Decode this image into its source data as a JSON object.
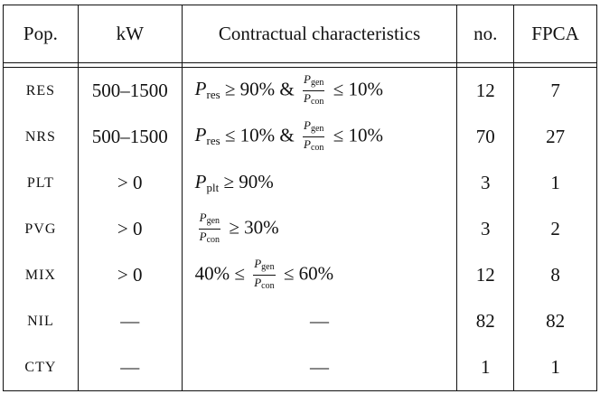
{
  "table": {
    "headers": {
      "pop": "Pop.",
      "kw": "kW",
      "contract": "Contractual characteristics",
      "no": "no.",
      "fpca": "FPCA"
    },
    "rows": [
      {
        "pop": "RES",
        "kw": "500–1500",
        "contract": {
          "parts": [
            {
              "var": "P",
              "sub": "res"
            },
            {
              "text": " ≥ 90% & "
            },
            {
              "frac": {
                "num_var": "P",
                "num_sub": "gen",
                "den_var": "P",
                "den_sub": "con"
              }
            },
            {
              "text": " ≤ 10%"
            }
          ]
        },
        "no": "12",
        "fpca": "7"
      },
      {
        "pop": "NRS",
        "kw": "500–1500",
        "contract": {
          "parts": [
            {
              "var": "P",
              "sub": "res"
            },
            {
              "text": " ≤ 10% & "
            },
            {
              "frac": {
                "num_var": "P",
                "num_sub": "gen",
                "den_var": "P",
                "den_sub": "con"
              }
            },
            {
              "text": " ≤ 10%"
            }
          ]
        },
        "no": "70",
        "fpca": "27"
      },
      {
        "pop": "PLT",
        "kw": "> 0",
        "contract": {
          "parts": [
            {
              "var": "P",
              "sub": "plt"
            },
            {
              "text": " ≥ 90%"
            }
          ]
        },
        "no": "3",
        "fpca": "1"
      },
      {
        "pop": "PVG",
        "kw": "> 0",
        "contract": {
          "parts": [
            {
              "frac": {
                "num_var": "P",
                "num_sub": "gen",
                "den_var": "P",
                "den_sub": "con"
              }
            },
            {
              "text": " ≥ 30%"
            }
          ]
        },
        "no": "3",
        "fpca": "2"
      },
      {
        "pop": "MIX",
        "kw": "> 0",
        "contract": {
          "parts": [
            {
              "text": "40% ≤ "
            },
            {
              "frac": {
                "num_var": "P",
                "num_sub": "gen",
                "den_var": "P",
                "den_sub": "con"
              }
            },
            {
              "text": " ≤ 60%"
            }
          ]
        },
        "no": "12",
        "fpca": "8"
      },
      {
        "pop": "NIL",
        "kw": "—",
        "contract": {
          "parts": [
            {
              "text": "—",
              "center": true
            }
          ]
        },
        "no": "82",
        "fpca": "82"
      },
      {
        "pop": "CTY",
        "kw": "—",
        "contract": {
          "parts": [
            {
              "text": "—",
              "center": true
            }
          ]
        },
        "no": "1",
        "fpca": "1"
      }
    ]
  }
}
